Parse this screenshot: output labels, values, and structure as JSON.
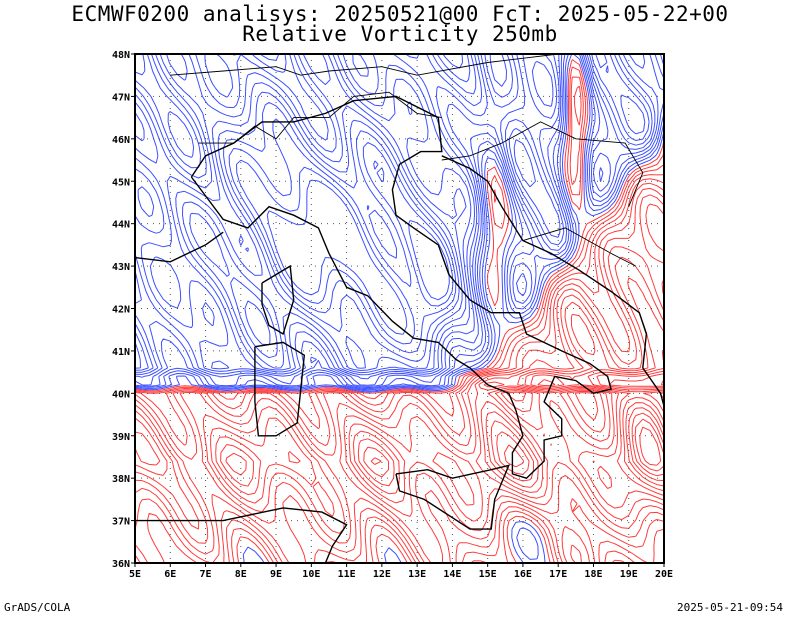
{
  "title_line1": "ECMWF0200 analisys: 20250521@00 FcT: 2025-05-22+00",
  "title_line2": "Relative Vorticity 250mb",
  "footer_left": "GrADS/COLA",
  "footer_right": "2025-05-21-09:54",
  "lat_labels": [
    "48N",
    "47N",
    "46N",
    "45N",
    "44N",
    "43N",
    "42N",
    "41N",
    "40N",
    "39N",
    "38N",
    "37N",
    "36N"
  ],
  "lon_labels": [
    "5E",
    "6E",
    "7E",
    "8E",
    "9E",
    "10E",
    "11E",
    "12E",
    "13E",
    "14E",
    "15E",
    "16E",
    "17E",
    "18E",
    "19E",
    "20E"
  ],
  "map_extent": {
    "lon": [
      5,
      20
    ],
    "lat": [
      36,
      48
    ]
  },
  "colors": {
    "positive_vorticity": "#ff3c3c",
    "negative_vorticity": "#3c50ff",
    "coastline": "#000000",
    "grid": "#555555"
  }
}
